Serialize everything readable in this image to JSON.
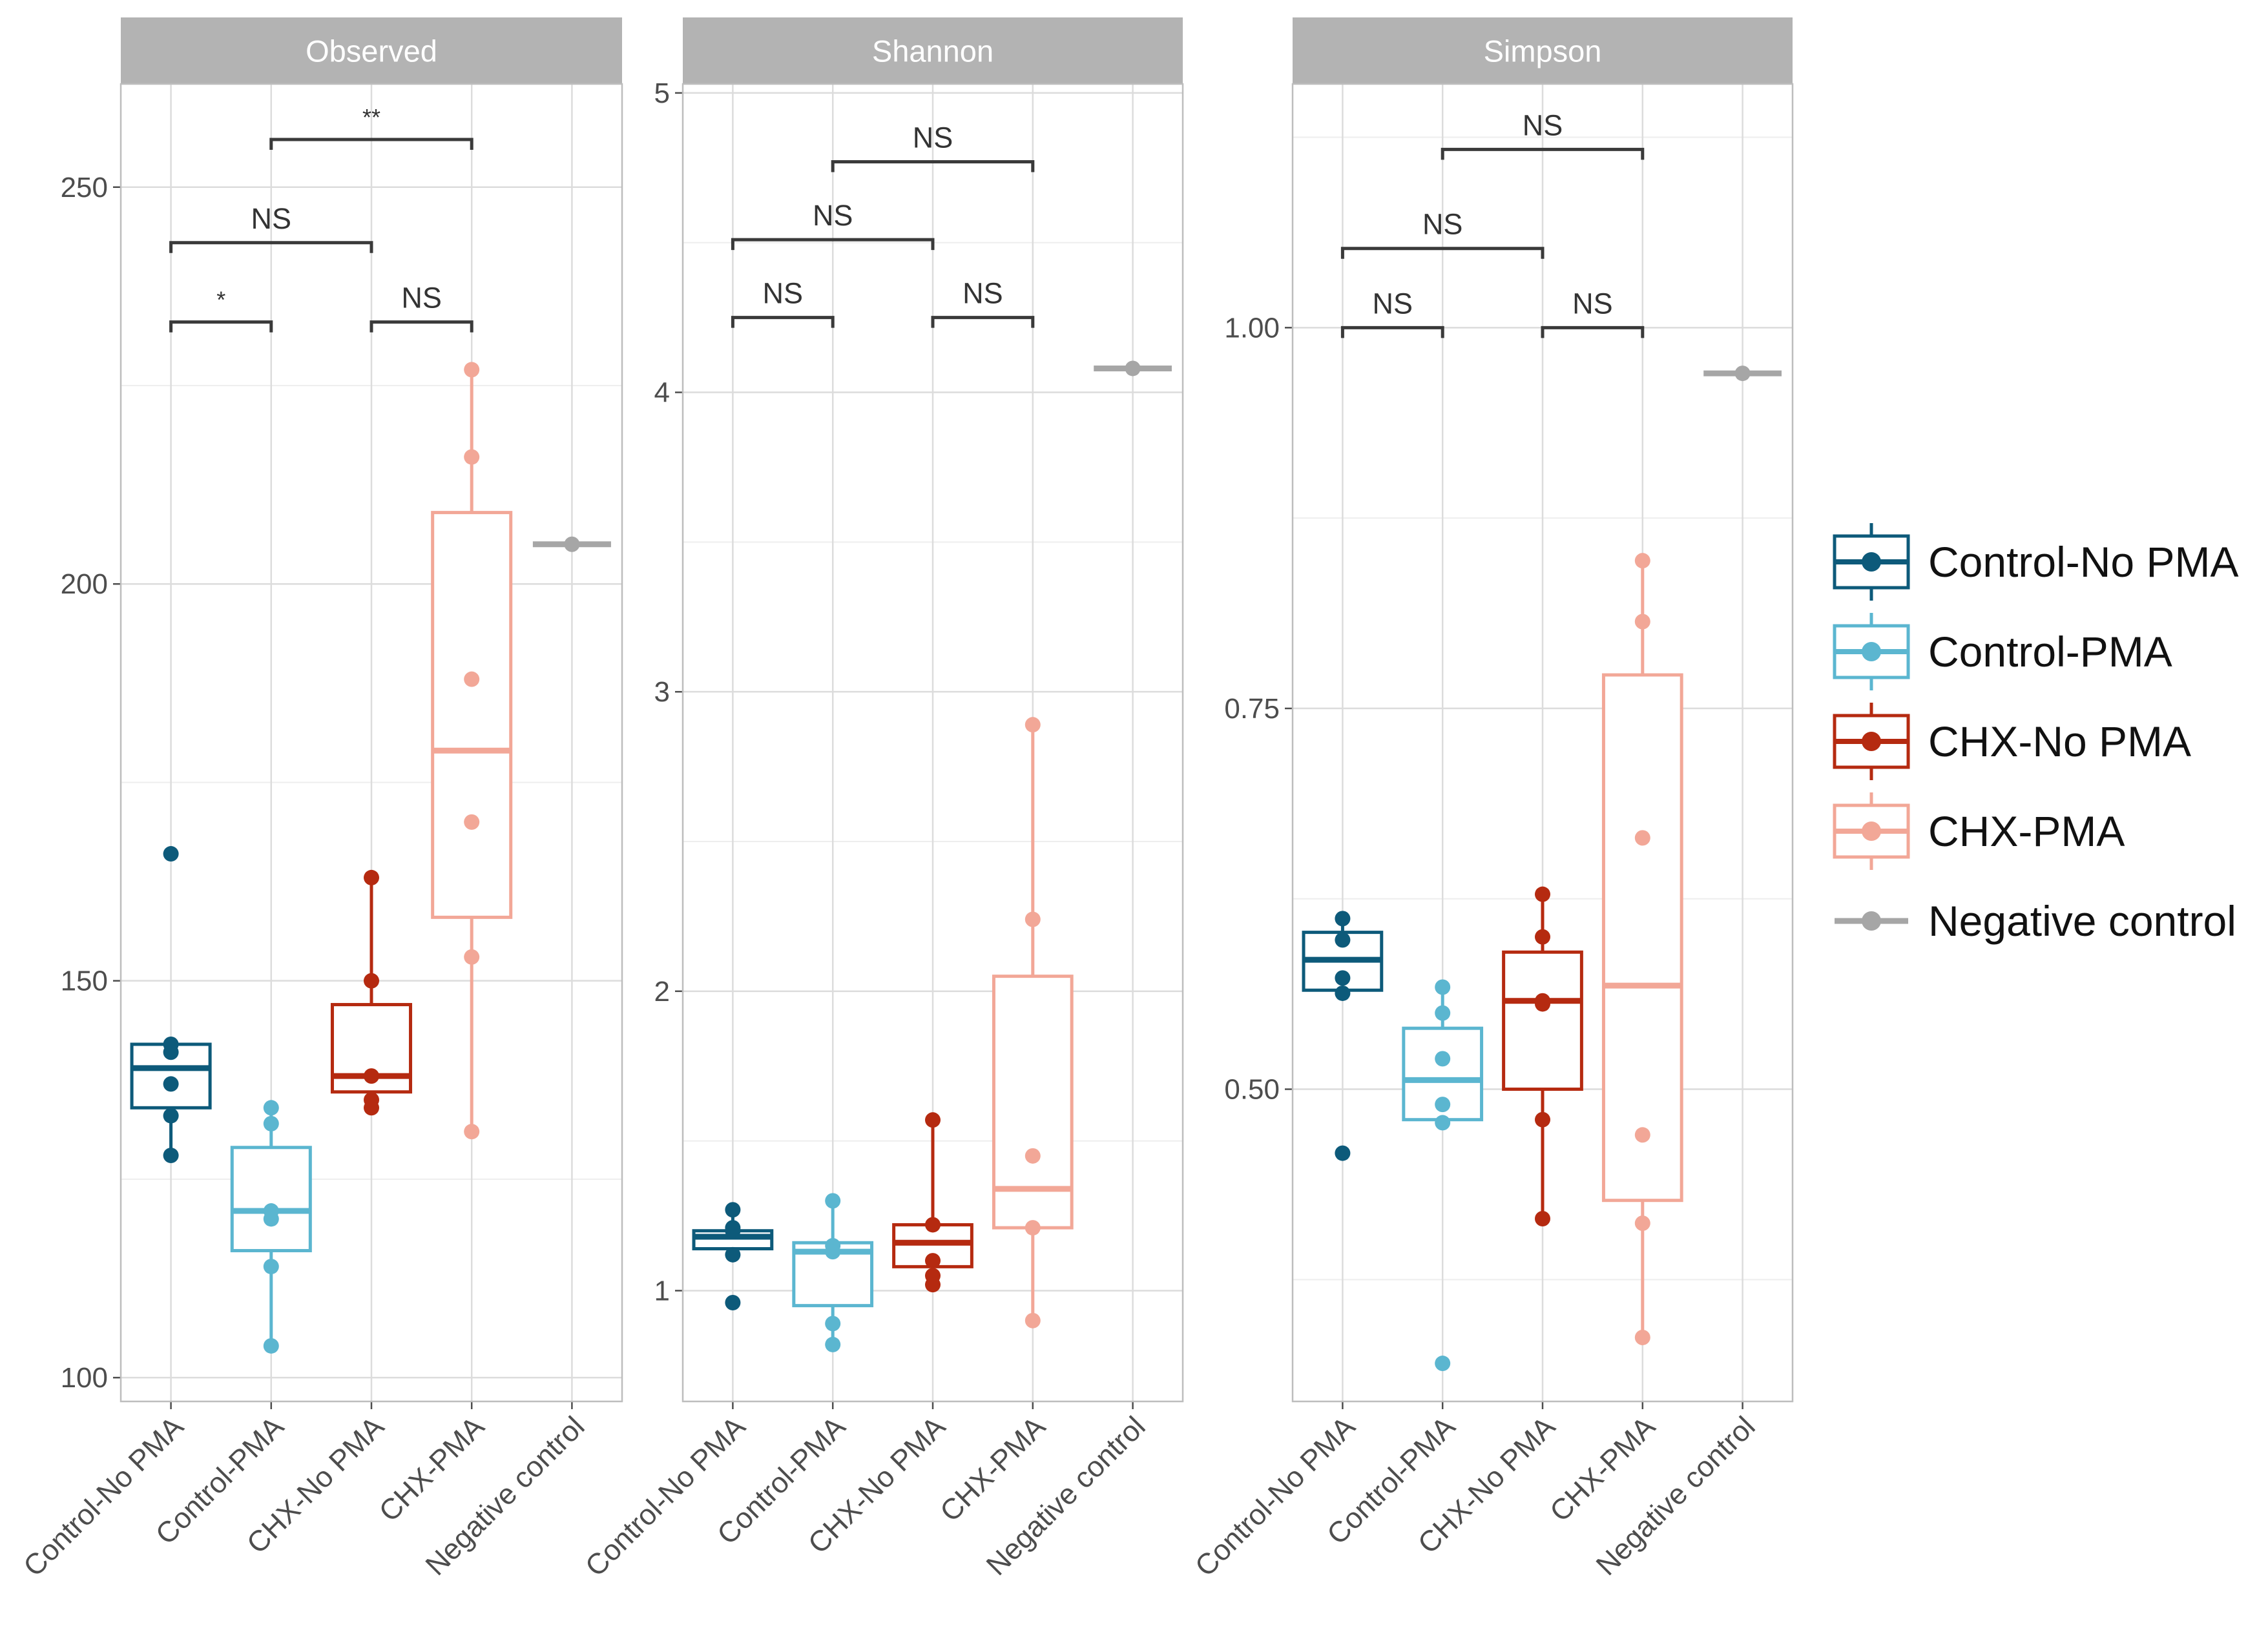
{
  "colors": {
    "Control-No PMA": "#0d5a7a",
    "Control-PMA": "#5bb6d0",
    "CHX-No PMA": "#b52a10",
    "CHX-PMA": "#f2a797",
    "Negative control": "#a6a6a6",
    "strip": "#b3b3b3",
    "strip_text": "#ffffff",
    "grid_major": "#dcdcdc",
    "grid_minor": "#eeeeee",
    "axis_text": "#4d4d4d",
    "bracket": "#3a3a3a"
  },
  "chart_data": {
    "type": "boxplot-facets",
    "categories": [
      "Control-No PMA",
      "Control-PMA",
      "CHX-No PMA",
      "CHX-PMA",
      "Negative control"
    ],
    "legend": {
      "placement": "right",
      "entries": [
        "Control-No PMA",
        "Control-PMA",
        "CHX-No PMA",
        "CHX-PMA",
        "Negative control"
      ]
    },
    "panels": [
      {
        "title": "Observed",
        "ylim": [
          97,
          263
        ],
        "yticks": [
          100,
          150,
          200,
          250
        ],
        "ytick_labels": [
          "100",
          "150",
          "200",
          "250"
        ],
        "yminor": [
          125,
          175,
          225
        ],
        "boxes": [
          {
            "group": "Control-No PMA",
            "q1": 134,
            "median": 139,
            "q3": 142,
            "whisker_low": 128,
            "whisker_high": 142,
            "points": [
              166,
              142,
              141,
              137,
              133,
              128
            ]
          },
          {
            "group": "Control-PMA",
            "q1": 116,
            "median": 121,
            "q3": 129,
            "whisker_low": 104,
            "whisker_high": 134,
            "points": [
              134,
              132,
              121,
              120,
              114,
              104
            ]
          },
          {
            "group": "CHX-No PMA",
            "q1": 136,
            "median": 138,
            "q3": 147,
            "whisker_low": 134,
            "whisker_high": 163,
            "points": [
              163,
              150,
              138,
              135,
              134
            ]
          },
          {
            "group": "CHX-PMA",
            "q1": 158,
            "median": 179,
            "q3": 209,
            "whisker_low": 131,
            "whisker_high": 227,
            "points": [
              227,
              216,
              188,
              170,
              153,
              131
            ]
          },
          {
            "group": "Negative control",
            "q1": 205,
            "median": 205,
            "q3": 205,
            "whisker_low": 205,
            "whisker_high": 205,
            "points": [
              205
            ]
          }
        ],
        "comparisons": [
          {
            "from": 0,
            "to": 1,
            "y": 233,
            "label": "*"
          },
          {
            "from": 2,
            "to": 3,
            "y": 233,
            "label": "NS"
          },
          {
            "from": 0,
            "to": 2,
            "y": 243,
            "label": "NS"
          },
          {
            "from": 1,
            "to": 3,
            "y": 256,
            "label": "**"
          }
        ]
      },
      {
        "title": "Shannon",
        "ylim": [
          0.63,
          5.03
        ],
        "yticks": [
          1,
          2,
          3,
          4,
          5
        ],
        "ytick_labels": [
          "1",
          "2",
          "3",
          "4",
          "5"
        ],
        "yminor": [
          1.5,
          2.5,
          3.5,
          4.5
        ],
        "boxes": [
          {
            "group": "Control-No PMA",
            "q1": 1.14,
            "median": 1.18,
            "q3": 1.2,
            "whisker_low": 1.14,
            "whisker_high": 1.27,
            "points": [
              1.27,
              1.21,
              1.2,
              1.12,
              0.96
            ]
          },
          {
            "group": "Control-PMA",
            "q1": 0.95,
            "median": 1.13,
            "q3": 1.16,
            "whisker_low": 0.82,
            "whisker_high": 1.3,
            "points": [
              1.3,
              1.15,
              1.13,
              0.89,
              0.82
            ]
          },
          {
            "group": "CHX-No PMA",
            "q1": 1.08,
            "median": 1.16,
            "q3": 1.22,
            "whisker_low": 1.02,
            "whisker_high": 1.57,
            "points": [
              1.57,
              1.22,
              1.1,
              1.05,
              1.02
            ]
          },
          {
            "group": "CHX-PMA",
            "q1": 1.21,
            "median": 1.34,
            "q3": 2.05,
            "whisker_low": 0.9,
            "whisker_high": 2.89,
            "points": [
              2.89,
              2.24,
              1.45,
              1.21,
              0.9
            ]
          },
          {
            "group": "Negative control",
            "q1": 4.08,
            "median": 4.08,
            "q3": 4.08,
            "whisker_low": 4.08,
            "whisker_high": 4.08,
            "points": [
              4.08
            ]
          }
        ],
        "comparisons": [
          {
            "from": 0,
            "to": 1,
            "y": 4.25,
            "label": "NS"
          },
          {
            "from": 2,
            "to": 3,
            "y": 4.25,
            "label": "NS"
          },
          {
            "from": 0,
            "to": 2,
            "y": 4.51,
            "label": "NS"
          },
          {
            "from": 1,
            "to": 3,
            "y": 4.77,
            "label": "NS"
          }
        ]
      },
      {
        "title": "Simpson",
        "ylim": [
          0.295,
          1.16
        ],
        "yticks": [
          0.5,
          0.75,
          1.0
        ],
        "ytick_labels": [
          "0.50",
          "0.75",
          "1.00"
        ],
        "yminor": [
          0.375,
          0.625,
          0.875,
          1.125
        ],
        "boxes": [
          {
            "group": "Control-No PMA",
            "q1": 0.565,
            "median": 0.585,
            "q3": 0.603,
            "whisker_low": 0.565,
            "whisker_high": 0.612,
            "points": [
              0.612,
              0.598,
              0.573,
              0.563,
              0.458
            ]
          },
          {
            "group": "Control-PMA",
            "q1": 0.48,
            "median": 0.506,
            "q3": 0.54,
            "whisker_low": 0.48,
            "whisker_high": 0.567,
            "points": [
              0.567,
              0.55,
              0.52,
              0.49,
              0.478,
              0.32
            ]
          },
          {
            "group": "CHX-No PMA",
            "q1": 0.5,
            "median": 0.558,
            "q3": 0.59,
            "whisker_low": 0.415,
            "whisker_high": 0.628,
            "points": [
              0.628,
              0.6,
              0.558,
              0.556,
              0.48,
              0.415
            ]
          },
          {
            "group": "CHX-PMA",
            "q1": 0.427,
            "median": 0.568,
            "q3": 0.772,
            "whisker_low": 0.337,
            "whisker_high": 0.847,
            "points": [
              0.847,
              0.807,
              0.665,
              0.47,
              0.412,
              0.337
            ]
          },
          {
            "group": "Negative control",
            "q1": 0.97,
            "median": 0.97,
            "q3": 0.97,
            "whisker_low": 0.97,
            "whisker_high": 0.97,
            "points": [
              0.97
            ]
          }
        ],
        "comparisons": [
          {
            "from": 0,
            "to": 1,
            "y": 1.0,
            "label": "NS"
          },
          {
            "from": 2,
            "to": 3,
            "y": 1.0,
            "label": "NS"
          },
          {
            "from": 0,
            "to": 2,
            "y": 1.052,
            "label": "NS"
          },
          {
            "from": 1,
            "to": 3,
            "y": 1.117,
            "label": "NS"
          }
        ]
      }
    ]
  }
}
